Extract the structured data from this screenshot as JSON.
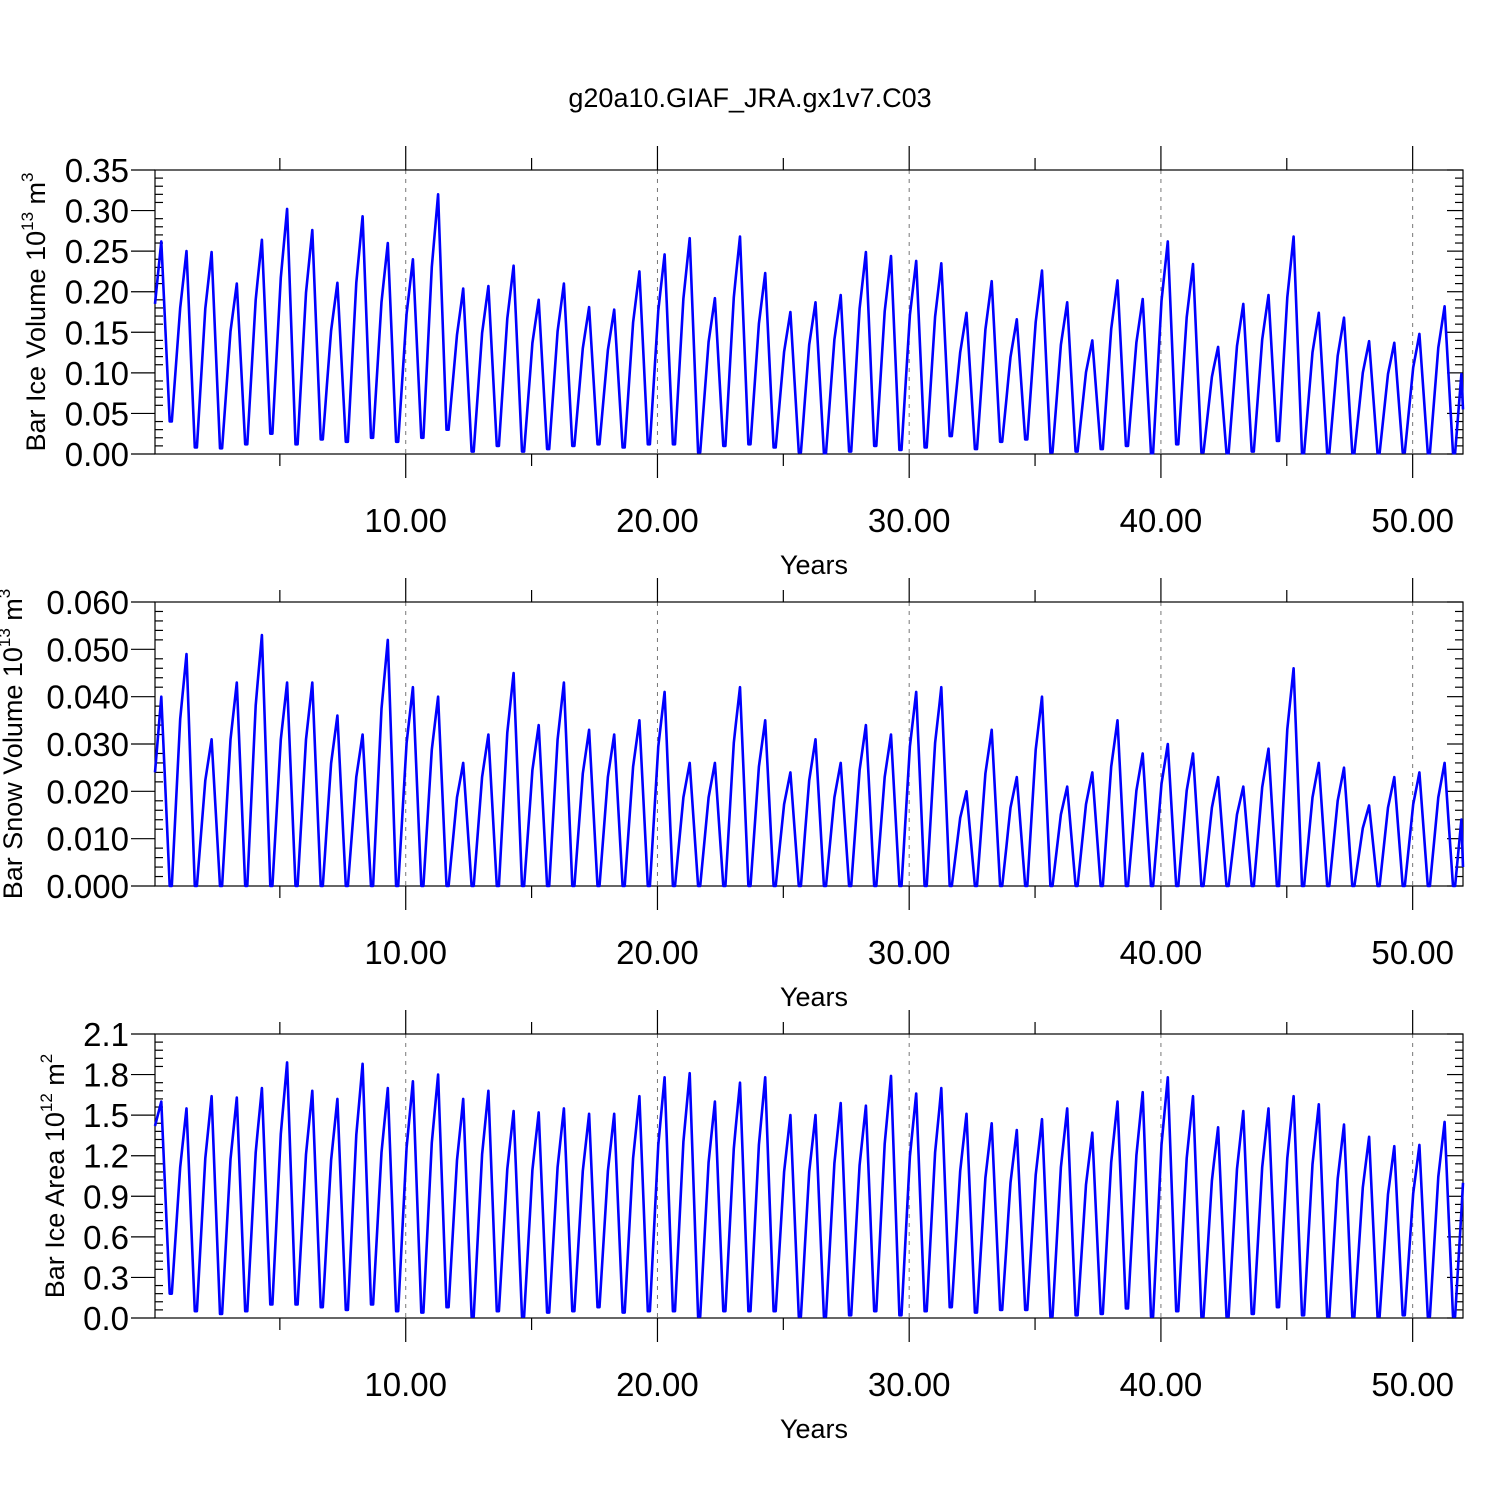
{
  "title": "g20a10.GIAF_JRA.gx1v7.C03",
  "colors": {
    "series": "#0000ff",
    "axes": "#000000",
    "grid": "#777777"
  },
  "chart_data": [
    {
      "type": "line",
      "xlabel": "Years",
      "ylabel_main": "Bar Ice Volume 10",
      "ylabel_sup": "13",
      "ylabel_unit": " m",
      "ylabel_unit_sup": "3",
      "xlim": [
        0.04,
        52.0
      ],
      "ylim": [
        0.0,
        0.35
      ],
      "x_ticks": [
        10,
        20,
        30,
        40,
        50
      ],
      "x_tick_labels": [
        "10.00",
        "20.00",
        "30.00",
        "40.00",
        "50.00"
      ],
      "y_ticks": [
        0.0,
        0.05,
        0.1,
        0.15,
        0.2,
        0.25,
        0.3,
        0.35
      ],
      "y_tick_labels": [
        "0.00",
        "0.05",
        "0.10",
        "0.15",
        "0.20",
        "0.25",
        "0.30",
        "0.35"
      ],
      "grid": "vertical dashed at major x ticks",
      "series": [
        {
          "x_start": 0.04,
          "x_step": 0.0833,
          "annual_max": [
            0.262,
            0.25,
            0.249,
            0.21,
            0.264,
            0.302,
            0.276,
            0.211,
            0.293,
            0.26,
            0.24,
            0.32,
            0.204,
            0.207,
            0.232,
            0.19,
            0.21,
            0.181,
            0.178,
            0.225,
            0.246,
            0.266,
            0.192,
            0.268,
            0.223,
            0.175,
            0.187,
            0.196,
            0.249,
            0.244,
            0.238,
            0.235,
            0.174,
            0.213,
            0.166,
            0.226,
            0.187,
            0.14,
            0.214,
            0.191,
            0.262,
            0.234,
            0.132,
            0.185,
            0.196,
            0.268,
            0.174,
            0.168,
            0.139,
            0.137,
            0.148,
            0.182
          ],
          "annual_min": [
            0.04,
            0.008,
            0.007,
            0.012,
            0.025,
            0.012,
            0.018,
            0.015,
            0.02,
            0.015,
            0.02,
            0.03,
            0.003,
            0.01,
            0.003,
            0.006,
            0.01,
            0.012,
            0.008,
            0.012,
            0.012,
            0.002,
            0.01,
            0.012,
            0.008,
            0.002,
            0.001,
            0.003,
            0.01,
            0.005,
            0.008,
            0.022,
            0.006,
            0.015,
            0.018,
            0.002,
            0.003,
            0.006,
            0.01,
            0.001,
            0.012,
            0.002,
            0.001,
            0.003,
            0.016,
            0.001,
            0.001,
            0.001,
            0.001,
            0.002,
            0.001,
            0.001
          ],
          "start_value": 0.185,
          "end_value": 0.055
        }
      ]
    },
    {
      "type": "line",
      "xlabel": "Years",
      "ylabel_main": "Bar Snow Volume 10",
      "ylabel_sup": "13",
      "ylabel_unit": " m",
      "ylabel_unit_sup": "3",
      "xlim": [
        0.04,
        52.0
      ],
      "ylim": [
        0.0,
        0.06
      ],
      "x_ticks": [
        10,
        20,
        30,
        40,
        50
      ],
      "x_tick_labels": [
        "10.00",
        "20.00",
        "30.00",
        "40.00",
        "50.00"
      ],
      "y_ticks": [
        0.0,
        0.01,
        0.02,
        0.03,
        0.04,
        0.05,
        0.06
      ],
      "y_tick_labels": [
        "0.000",
        "0.010",
        "0.020",
        "0.030",
        "0.040",
        "0.050",
        "0.060"
      ],
      "grid": "vertical dashed at major x ticks",
      "series": [
        {
          "x_start": 0.04,
          "x_step": 0.0833,
          "annual_max": [
            0.04,
            0.049,
            0.031,
            0.043,
            0.053,
            0.043,
            0.043,
            0.036,
            0.032,
            0.052,
            0.042,
            0.04,
            0.026,
            0.032,
            0.045,
            0.034,
            0.043,
            0.033,
            0.032,
            0.035,
            0.041,
            0.026,
            0.026,
            0.042,
            0.035,
            0.024,
            0.031,
            0.026,
            0.034,
            0.032,
            0.041,
            0.042,
            0.02,
            0.033,
            0.023,
            0.04,
            0.021,
            0.024,
            0.035,
            0.028,
            0.03,
            0.028,
            0.023,
            0.021,
            0.029,
            0.046,
            0.026,
            0.025,
            0.017,
            0.023,
            0.024,
            0.026
          ],
          "annual_min": [
            0.0,
            0.0,
            0.0,
            0.0,
            0.0,
            0.0,
            0.0,
            0.0,
            0.0,
            0.0,
            0.0,
            0.0,
            0.0,
            0.0,
            0.0,
            0.0,
            0.0,
            0.0,
            0.0,
            0.0,
            0.0,
            0.0,
            0.0,
            0.0,
            0.0,
            0.0,
            0.0,
            0.0,
            0.0,
            0.0,
            0.0,
            0.0,
            0.0,
            0.0,
            0.0,
            0.0,
            0.0,
            0.0,
            0.0,
            0.0,
            0.0,
            0.0,
            0.0,
            0.0,
            0.0,
            0.0,
            0.0,
            0.0,
            0.0,
            0.0,
            0.0,
            0.0
          ],
          "start_value": 0.024,
          "end_value": 0.004
        }
      ]
    },
    {
      "type": "line",
      "xlabel": "Years",
      "ylabel_main": "Bar Ice Area 10",
      "ylabel_sup": "12",
      "ylabel_unit": " m",
      "ylabel_unit_sup": "2",
      "xlim": [
        0.04,
        52.0
      ],
      "ylim": [
        0.0,
        2.1
      ],
      "x_ticks": [
        10,
        20,
        30,
        40,
        50
      ],
      "x_tick_labels": [
        "10.00",
        "20.00",
        "30.00",
        "40.00",
        "50.00"
      ],
      "y_ticks": [
        0.0,
        0.3,
        0.6,
        0.9,
        1.2,
        1.5,
        1.8,
        2.1
      ],
      "y_tick_labels": [
        "0.0",
        "0.3",
        "0.6",
        "0.9",
        "1.2",
        "1.5",
        "1.8",
        "2.1"
      ],
      "grid": "vertical dashed at major x ticks",
      "series": [
        {
          "x_start": 0.04,
          "x_step": 0.0833,
          "annual_max": [
            1.6,
            1.55,
            1.64,
            1.63,
            1.7,
            1.89,
            1.68,
            1.62,
            1.88,
            1.7,
            1.75,
            1.8,
            1.62,
            1.68,
            1.53,
            1.52,
            1.55,
            1.51,
            1.51,
            1.64,
            1.78,
            1.81,
            1.6,
            1.74,
            1.78,
            1.5,
            1.5,
            1.59,
            1.57,
            1.79,
            1.66,
            1.7,
            1.51,
            1.44,
            1.39,
            1.47,
            1.55,
            1.37,
            1.6,
            1.67,
            1.78,
            1.64,
            1.41,
            1.53,
            1.55,
            1.64,
            1.58,
            1.43,
            1.34,
            1.27,
            1.28,
            1.45
          ],
          "annual_min": [
            0.18,
            0.05,
            0.03,
            0.05,
            0.1,
            0.1,
            0.08,
            0.06,
            0.1,
            0.05,
            0.04,
            0.08,
            0.01,
            0.05,
            0.01,
            0.04,
            0.05,
            0.08,
            0.04,
            0.05,
            0.05,
            0.01,
            0.05,
            0.05,
            0.05,
            0.01,
            0.01,
            0.02,
            0.05,
            0.02,
            0.05,
            0.08,
            0.04,
            0.06,
            0.06,
            0.01,
            0.02,
            0.03,
            0.07,
            0.01,
            0.05,
            0.01,
            0.01,
            0.03,
            0.08,
            0.02,
            0.01,
            0.01,
            0.01,
            0.02,
            0.01,
            0.01
          ],
          "start_value": 1.42,
          "end_value": 1.0
        }
      ]
    }
  ]
}
